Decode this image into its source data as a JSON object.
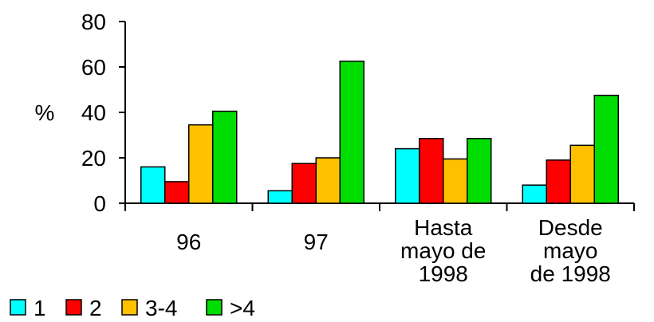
{
  "chart_data": {
    "type": "bar",
    "categories": [
      [
        "96"
      ],
      [
        "97"
      ],
      [
        "Hasta",
        "mayo de",
        "1998"
      ],
      [
        "Desde",
        "mayo",
        "de 1998"
      ]
    ],
    "series": [
      {
        "name": "1",
        "color": "#00ffff",
        "values": [
          16,
          5.5,
          24,
          8
        ]
      },
      {
        "name": "2",
        "color": "#ff0000",
        "values": [
          9.5,
          17.5,
          28.5,
          19
        ]
      },
      {
        "name": "3-4",
        "color": "#ffc000",
        "values": [
          34.5,
          20,
          19.5,
          25.5
        ]
      },
      {
        "name": ">4",
        "color": "#00dd00",
        "values": [
          40.5,
          62.5,
          28.5,
          47.5
        ]
      }
    ],
    "ylabel": "%",
    "ylim": [
      0,
      80
    ],
    "yticks": [
      "0",
      "20",
      "40",
      "60",
      "80"
    ],
    "grid": false,
    "legend_position": "bottom-left"
  }
}
